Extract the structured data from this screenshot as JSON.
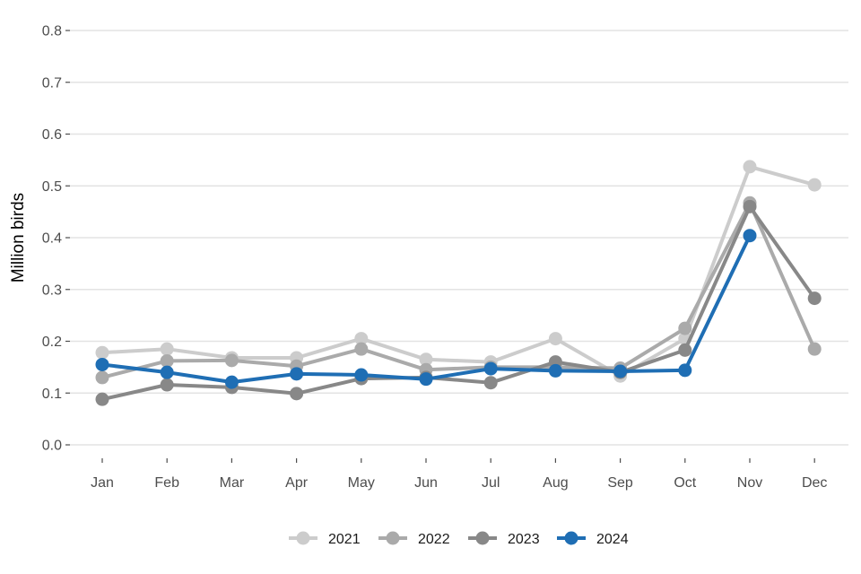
{
  "chart_data": {
    "type": "line",
    "title": "",
    "xlabel": "",
    "ylabel": "Million birds",
    "categories": [
      "Jan",
      "Feb",
      "Mar",
      "Apr",
      "May",
      "Jun",
      "Jul",
      "Aug",
      "Sep",
      "Oct",
      "Nov",
      "Dec"
    ],
    "ylim": [
      0,
      0.8
    ],
    "yticks": [
      "0.0",
      "0.1",
      "0.2",
      "0.3",
      "0.4",
      "0.5",
      "0.6",
      "0.7",
      "0.8"
    ],
    "grid": "horizontal",
    "legend_position": "bottom",
    "series": [
      {
        "name": "2021",
        "color": "#cccccc",
        "values": [
          0.178,
          0.185,
          0.168,
          0.168,
          0.205,
          0.165,
          0.16,
          0.205,
          0.133,
          0.205,
          0.537,
          0.502
        ]
      },
      {
        "name": "2022",
        "color": "#aaaaaa",
        "values": [
          0.13,
          0.162,
          0.163,
          0.152,
          0.185,
          0.145,
          0.15,
          0.15,
          0.148,
          0.225,
          0.467,
          0.185
        ]
      },
      {
        "name": "2023",
        "color": "#888888",
        "values": [
          0.088,
          0.116,
          0.111,
          0.099,
          0.128,
          0.13,
          0.12,
          0.16,
          0.14,
          0.183,
          0.46,
          0.283
        ]
      },
      {
        "name": "2024",
        "color": "#1f6eb4",
        "values": [
          0.155,
          0.14,
          0.121,
          0.137,
          0.135,
          0.127,
          0.147,
          0.143,
          0.142,
          0.144,
          0.404,
          null
        ]
      }
    ]
  }
}
